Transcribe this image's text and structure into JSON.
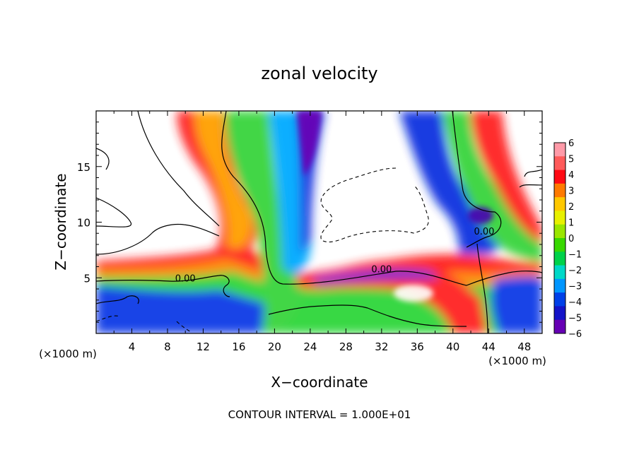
{
  "chart_data": {
    "type": "heatmap",
    "title": "zonal velocity",
    "xlabel": "X−coordinate",
    "ylabel": "Z−coordinate",
    "x_units_left": "(×1000 m)",
    "x_units_right": "(×1000 m)",
    "xlim": [
      0,
      50
    ],
    "ylim": [
      0,
      20
    ],
    "x_ticks": [
      "4",
      "8",
      "12",
      "16",
      "20",
      "24",
      "28",
      "32",
      "36",
      "40",
      "44",
      "48"
    ],
    "y_ticks": [
      "5",
      "10",
      "15"
    ],
    "colorbar_labels": [
      "6",
      "5",
      "4",
      "3",
      "2",
      "1",
      "0",
      "−1",
      "−2",
      "−3",
      "−4",
      "−5",
      "−6"
    ],
    "colorbar_range": [
      -6,
      6
    ],
    "colorbar_colors": [
      "#ff9aa8",
      "#ff5a5a",
      "#ff0a14",
      "#ff7a00",
      "#ffc800",
      "#e8f000",
      "#9ae600",
      "#38d800",
      "#00d24a",
      "#00d8c8",
      "#0096ff",
      "#0040e8",
      "#1414c8",
      "#6600b4"
    ],
    "contour_labels": [
      {
        "text": "0.00",
        "x": 10.0,
        "z": 5.0
      },
      {
        "text": "0.00",
        "x": 32.0,
        "z": 5.8
      },
      {
        "text": "0.00",
        "x": 43.5,
        "z": 9.2
      }
    ],
    "footer": "CONTOUR INTERVAL = 1.000E+01"
  }
}
